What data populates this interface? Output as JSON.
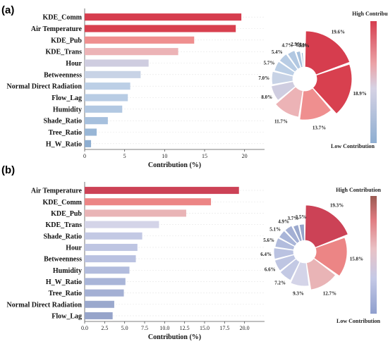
{
  "chart_data": [
    {
      "panel_label": "(a)",
      "type": "bar",
      "orientation": "horizontal",
      "categories": [
        "KDE_Comm",
        "Air Temperature",
        "KDE_Pub",
        "KDE_Trans",
        "Hour",
        "Betweenness",
        "Normal Direct Radiation",
        "Flow_Lag",
        "Humidity",
        "Shade_Ratio",
        "Tree_Ratio",
        "H_W_Ratio"
      ],
      "values": [
        19.6,
        18.9,
        13.7,
        11.7,
        8.0,
        7.0,
        5.7,
        5.4,
        4.7,
        2.9,
        1.5,
        0.8
      ],
      "bar_colors": [
        "#d63d4e",
        "#d8404f",
        "#ef8f8f",
        "#ecb3b6",
        "#cfcde0",
        "#c8d3e6",
        "#bccfe6",
        "#b8cce4",
        "#b2c8e2",
        "#a6c0dd",
        "#98b6d6",
        "#8eaed1"
      ],
      "xlabel": "Contribution (%)",
      "xticks": [
        0,
        5,
        10,
        15,
        20
      ],
      "xlim": [
        0,
        22.5
      ],
      "donut": {
        "values": [
          19.6,
          18.9,
          13.7,
          11.7,
          8.0,
          7.0,
          5.7,
          5.4,
          4.7,
          2.9,
          1.5,
          0.8
        ],
        "labels": [
          "19.6%",
          "18.9%",
          "13.7%",
          "11.7%",
          "8.0%",
          "7.0%",
          "5.7%",
          "5.4%",
          "4.7%",
          "2.9%",
          "1.5%",
          "0.8%"
        ]
      },
      "colorbar": {
        "top_label": "High Contribution",
        "bottom_label": "Low Contribution",
        "high_color": "#d63d4e",
        "low_color": "#8eaed1"
      }
    },
    {
      "panel_label": "(b)",
      "type": "bar",
      "orientation": "horizontal",
      "categories": [
        "Air Temperature",
        "KDE_Comm",
        "KDE_Pub",
        "KDE_Trans",
        "Shade_Ratio",
        "Hour",
        "Betweenness",
        "Humidity",
        "H_W_Ratio",
        "Tree_Ratio",
        "Normal Direct Radiation",
        "Flow_Lag"
      ],
      "values": [
        19.3,
        15.8,
        12.7,
        9.3,
        7.2,
        6.6,
        6.4,
        5.6,
        5.1,
        4.9,
        3.7,
        3.5
      ],
      "bar_colors": [
        "#cc4256",
        "#ec8585",
        "#e9b4b6",
        "#d4d4e8",
        "#c3c9e4",
        "#bec5e2",
        "#bac2e1",
        "#b2bcdd",
        "#a9b5d8",
        "#a4b0d4",
        "#9aa8cd",
        "#96a4ca"
      ],
      "xlabel": "Contribution (%)",
      "xticks": [
        "0.0",
        "2.5",
        "5.0",
        "7.5",
        "10.0",
        "12.5",
        "15.0",
        "17.5",
        "20.0"
      ],
      "xlim": [
        0,
        22.5
      ],
      "donut": {
        "values": [
          19.3,
          15.8,
          12.7,
          9.3,
          7.2,
          6.6,
          6.4,
          5.6,
          5.1,
          4.9,
          3.7,
          3.5
        ],
        "labels": [
          "19.3%",
          "15.8%",
          "12.7%",
          "9.3%",
          "7.2%",
          "6.6%",
          "6.4%",
          "5.6%",
          "5.1%",
          "4.9%",
          "3.7%",
          "3.5%"
        ]
      },
      "colorbar": {
        "top_label": "High Contribution",
        "bottom_label": "Low Contribution",
        "high_color": "#9b5a52",
        "low_color": "#8f9fce"
      }
    }
  ]
}
